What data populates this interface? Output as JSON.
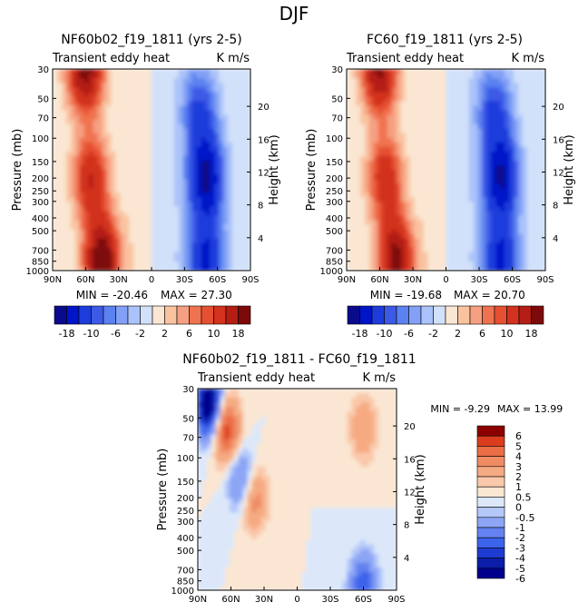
{
  "figure_title": "DJF",
  "chart_data": [
    {
      "type": "heatmap",
      "title": "NF60b02_f19_1811 (yrs 2-5)",
      "subtitle_left": "Transient eddy heat",
      "subtitle_right": "K m/s",
      "ylabel": "Pressure (mb)",
      "y2label": "Height (km)",
      "x_ticks": [
        "90N",
        "60N",
        "30N",
        "0",
        "30S",
        "60S",
        "90S"
      ],
      "y_ticks": [
        "30",
        "50",
        "70",
        "100",
        "150",
        "200",
        "250",
        "300",
        "400",
        "500",
        "700",
        "850",
        "1000"
      ],
      "y2_ticks": [
        "20",
        "16",
        "12",
        "8",
        "4"
      ],
      "min_label": "MIN = -20.46",
      "max_label": "MAX = 27.30",
      "min": -20.46,
      "max": 27.3,
      "colorbar_ticks": [
        "-18",
        "-10",
        "-6",
        "-2",
        "2",
        "6",
        "10",
        "18"
      ],
      "features": [
        {
          "lat": 60,
          "p": 30,
          "value": 20
        },
        {
          "lat": 55,
          "p": 200,
          "value": 14
        },
        {
          "lat": 45,
          "p": 850,
          "value": 22
        },
        {
          "lat": -50,
          "p": 200,
          "value": -19
        },
        {
          "lat": -50,
          "p": 850,
          "value": -15
        },
        {
          "lat": -45,
          "p": 60,
          "value": -10
        }
      ]
    },
    {
      "type": "heatmap",
      "title": "FC60_f19_1811 (yrs 2-5)",
      "subtitle_left": "Transient eddy heat",
      "subtitle_right": "K m/s",
      "ylabel": "Pressure (mb)",
      "y2label": "Height (km)",
      "x_ticks": [
        "90N",
        "60N",
        "30N",
        "0",
        "30S",
        "60S",
        "90S"
      ],
      "y_ticks": [
        "30",
        "50",
        "70",
        "100",
        "150",
        "200",
        "250",
        "300",
        "400",
        "500",
        "700",
        "850",
        "1000"
      ],
      "y2_ticks": [
        "20",
        "16",
        "12",
        "8",
        "4"
      ],
      "min_label": "MIN = -19.68",
      "max_label": "MAX = 20.70",
      "min": -19.68,
      "max": 20.7,
      "colorbar_ticks": [
        "-18",
        "-10",
        "-6",
        "-2",
        "2",
        "6",
        "10",
        "18"
      ],
      "features": [
        {
          "lat": 60,
          "p": 30,
          "value": 19
        },
        {
          "lat": 55,
          "p": 200,
          "value": 13
        },
        {
          "lat": 45,
          "p": 850,
          "value": 20
        },
        {
          "lat": -50,
          "p": 200,
          "value": -18
        },
        {
          "lat": -50,
          "p": 850,
          "value": -15
        },
        {
          "lat": -45,
          "p": 60,
          "value": -10
        }
      ]
    },
    {
      "type": "heatmap",
      "title": "NF60b02_f19_1811 - FC60_f19_1811",
      "subtitle_left": "Transient eddy heat",
      "subtitle_right": "K m/s",
      "ylabel": "Pressure (mb)",
      "y2label": "Height (km)",
      "x_ticks": [
        "90N",
        "60N",
        "30N",
        "0",
        "30S",
        "60S",
        "90S"
      ],
      "y_ticks": [
        "30",
        "50",
        "70",
        "100",
        "150",
        "200",
        "250",
        "300",
        "400",
        "500",
        "700",
        "850",
        "1000"
      ],
      "y2_ticks": [
        "20",
        "16",
        "12",
        "8",
        "4"
      ],
      "min_label": "MIN =   -9.29",
      "max_label": "MAX =   13.99",
      "min": -9.29,
      "max": 13.99,
      "colorbar_ticks": [
        "6",
        "5",
        "4",
        "3",
        "2",
        "1",
        "0.5",
        "0",
        "-0.5",
        "-1",
        "-2",
        "-3",
        "-4",
        "-5",
        "-6"
      ],
      "features": [
        {
          "lat": 80,
          "p": 40,
          "value": -8
        },
        {
          "lat": 65,
          "p": 60,
          "value": 5
        },
        {
          "lat": 50,
          "p": 150,
          "value": -3
        },
        {
          "lat": 40,
          "p": 200,
          "value": 3
        },
        {
          "lat": -60,
          "p": 60,
          "value": 2
        },
        {
          "lat": -60,
          "p": 950,
          "value": -4
        }
      ]
    }
  ]
}
